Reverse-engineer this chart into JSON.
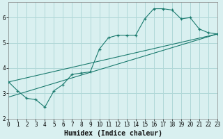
{
  "xlabel": "Humidex (Indice chaleur)",
  "background_color": "#d9f0f0",
  "grid_color": "#b0d8d8",
  "line_color": "#1a7a6e",
  "xlim": [
    0,
    23
  ],
  "ylim": [
    2,
    6.6
  ],
  "xticks": [
    0,
    1,
    2,
    3,
    4,
    5,
    6,
    7,
    8,
    9,
    10,
    11,
    12,
    13,
    14,
    15,
    16,
    17,
    18,
    19,
    20,
    21,
    22,
    23
  ],
  "yticks": [
    2,
    3,
    4,
    5,
    6
  ],
  "curve1_x": [
    0,
    1,
    2,
    3,
    4,
    5,
    6,
    7,
    8,
    9,
    10,
    11,
    12,
    13,
    14,
    15,
    16,
    17,
    18,
    19,
    20,
    21,
    22,
    23
  ],
  "curve1_y": [
    3.45,
    3.1,
    2.8,
    2.75,
    2.45,
    3.1,
    3.35,
    3.75,
    3.8,
    3.85,
    4.75,
    5.2,
    5.3,
    5.3,
    5.3,
    5.95,
    6.35,
    6.35,
    6.3,
    5.95,
    6.0,
    5.55,
    5.4,
    5.35
  ],
  "line2_x": [
    0,
    23
  ],
  "line2_y": [
    2.85,
    5.35
  ],
  "line3_x": [
    0,
    23
  ],
  "line3_y": [
    3.45,
    5.35
  ],
  "xlabel_fontsize": 7,
  "tick_fontsize": 5.5
}
